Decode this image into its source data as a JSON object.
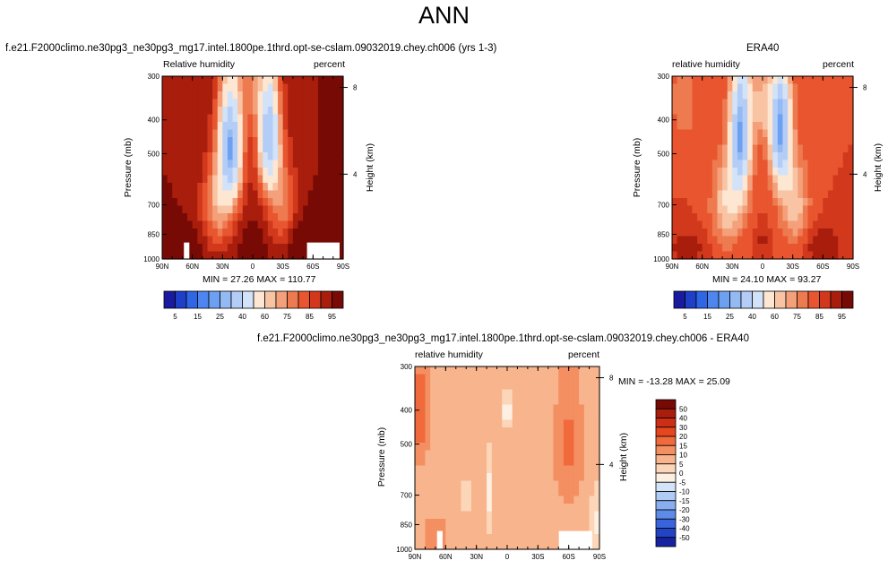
{
  "title": "ANN",
  "chart_data": [
    {
      "type": "heatmap",
      "title": "f.e21.F2000climo.ne30pg3_ne30pg3_mg17.intel.1800pe.1thrd.opt-se-cslam.09032019.chey.ch006 (yrs 1-3)",
      "field_label": "Relative humidity",
      "units_label": "percent",
      "ylabel": "Pressure (mb)",
      "ylabel_right": "Height (km)",
      "x_ticks": [
        "90N",
        "60N",
        "30N",
        "0",
        "30S",
        "60S",
        "90S"
      ],
      "y_ticks": [
        "300",
        "400",
        "500",
        "700",
        "850",
        "1000"
      ],
      "y_ticks_right": [
        "8",
        "4"
      ],
      "stats": "MIN = 27.26  MAX = 110.77",
      "min": 27.26,
      "max": 110.77,
      "colorbar_labels": [
        "5",
        "15",
        "25",
        "40",
        "60",
        "75",
        "85",
        "95"
      ]
    },
    {
      "type": "heatmap",
      "title": "ERA40",
      "field_label": "relative humidity",
      "units_label": "percent",
      "ylabel": "Pressure (mb)",
      "ylabel_right": "Height (km)",
      "x_ticks": [
        "90N",
        "60N",
        "30N",
        "0",
        "30S",
        "60S",
        "90S"
      ],
      "y_ticks": [
        "300",
        "400",
        "500",
        "700",
        "850",
        "1000"
      ],
      "y_ticks_right": [
        "8",
        "4"
      ],
      "stats": "MIN = 24.10  MAX = 93.27",
      "min": 24.1,
      "max": 93.27,
      "colorbar_labels": [
        "5",
        "15",
        "25",
        "40",
        "60",
        "75",
        "85",
        "95"
      ]
    },
    {
      "type": "heatmap",
      "title": "f.e21.F2000climo.ne30pg3_ne30pg3_mg17.intel.1800pe.1thrd.opt-se-cslam.09032019.chey.ch006 - ERA40",
      "field_label": "relative humidity",
      "units_label": "percent",
      "ylabel": "Pressure (mb)",
      "ylabel_right": "Height (km)",
      "x_ticks": [
        "90N",
        "60N",
        "30N",
        "0",
        "30S",
        "60S",
        "90S"
      ],
      "y_ticks": [
        "300",
        "400",
        "500",
        "700",
        "850",
        "1000"
      ],
      "y_ticks_right": [
        "8",
        "4"
      ],
      "stats": "MIN = -13.28  MAX =  25.09",
      "min": -13.28,
      "max": 25.09,
      "colorbar_labels": [
        "50",
        "40",
        "30",
        "20",
        "15",
        "10",
        "5",
        "0",
        "-5",
        "-10",
        "-15",
        "-20",
        "-30",
        "-40",
        "-50"
      ]
    }
  ],
  "colors": {
    "abs_scale": [
      "#1a1aa0",
      "#1e3fc8",
      "#2e66e6",
      "#4c86ee",
      "#6ea0f2",
      "#94baf4",
      "#b4cdf6",
      "#d2e2f8",
      "#fde6d2",
      "#f8c4a4",
      "#f4a07a",
      "#ee7a50",
      "#e8552e",
      "#d2391c",
      "#a81d0c",
      "#780a06"
    ],
    "diff_scale": [
      "#780a06",
      "#a81d0c",
      "#cd2f16",
      "#e5461f",
      "#f06a3c",
      "#f48f62",
      "#f8b48c",
      "#fcd6b8",
      "#fdf0e2",
      "#d4e4f8",
      "#b0cbf4",
      "#88aef0",
      "#5e8ae8",
      "#3a64dc",
      "#2244c4",
      "#1622a0"
    ]
  }
}
